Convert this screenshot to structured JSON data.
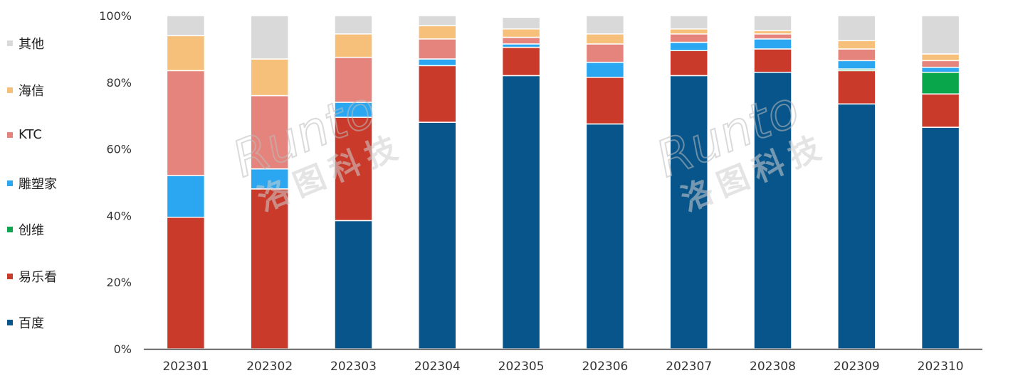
{
  "chart_data": {
    "type": "bar",
    "stacked": true,
    "categories": [
      "202301",
      "202302",
      "202303",
      "202304",
      "202305",
      "202306",
      "202307",
      "202308",
      "202309",
      "202310"
    ],
    "ylim": [
      0,
      100
    ],
    "yticks": [
      "0%",
      "20%",
      "40%",
      "60%",
      "80%",
      "100%"
    ],
    "title": "",
    "xlabel": "",
    "ylabel": "",
    "legend_position": "left",
    "series": [
      {
        "name": "百度",
        "color": "#07558a",
        "values": [
          0,
          0,
          38.5,
          68,
          82,
          67.5,
          82,
          83,
          73.5,
          66.5
        ]
      },
      {
        "name": "易乐看",
        "color": "#c93a2b",
        "values": [
          39.5,
          48,
          31,
          17,
          8.5,
          14,
          7.5,
          7,
          10,
          10
        ]
      },
      {
        "name": "创维",
        "color": "#0aa64c",
        "values": [
          0,
          0,
          0,
          0,
          0,
          0,
          0,
          0,
          0.5,
          6.5
        ]
      },
      {
        "name": "雕塑家",
        "color": "#2aa7f0",
        "values": [
          12.5,
          6,
          4.5,
          2,
          1,
          4.5,
          2.5,
          3,
          2.5,
          1.5
        ]
      },
      {
        "name": "KTC",
        "color": "#e5847c",
        "values": [
          31.5,
          22,
          13.5,
          6,
          2,
          5.5,
          2.5,
          1.5,
          3.5,
          2
        ]
      },
      {
        "name": "海信",
        "color": "#f6c07b",
        "values": [
          10.5,
          11,
          7,
          4,
          2.5,
          3,
          1.5,
          1,
          2.5,
          2
        ]
      },
      {
        "name": "其他",
        "color": "#d9d9d9",
        "values": [
          6,
          13,
          5.5,
          3,
          3.5,
          5.5,
          4,
          4.5,
          7.5,
          11.5
        ]
      }
    ]
  },
  "watermark": {
    "line1": "Runto",
    "line2": "洛图科技"
  }
}
